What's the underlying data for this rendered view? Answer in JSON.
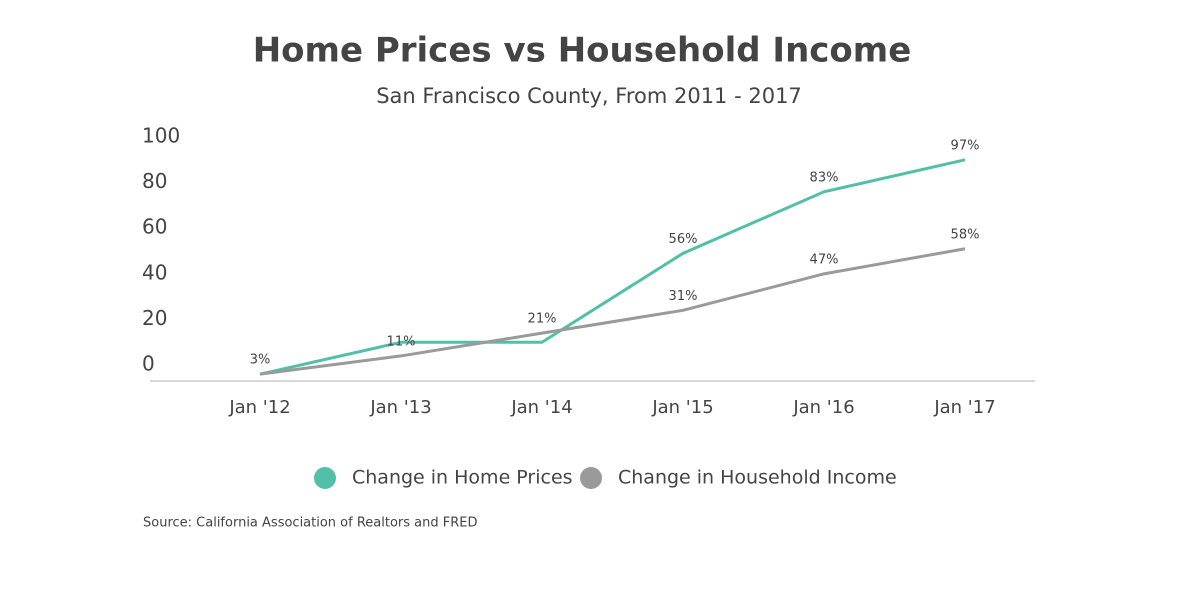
{
  "chart_data": {
    "type": "line",
    "title": "Home Prices vs Household Income",
    "subtitle": "San Francisco County, From 2011 - 2017",
    "source": "Source:  California Association of Realtors and FRED",
    "categories": [
      "Jan '12",
      "Jan '13",
      "Jan '14",
      "Jan '15",
      "Jan '16",
      "Jan '17"
    ],
    "series": [
      {
        "name": "Change in Home Prices",
        "color": "#52bfa9",
        "values": [
          3,
          17,
          17,
          56,
          83,
          97
        ],
        "value_labels": [
          "3%",
          null,
          null,
          "56%",
          "83%",
          "97%"
        ]
      },
      {
        "name": "Change in Household Income",
        "color": "#9a9a9a",
        "values": [
          3,
          11,
          21,
          31,
          47,
          58
        ],
        "value_labels": [
          null,
          "11%",
          "21%",
          "31%",
          "47%",
          "58%"
        ]
      }
    ],
    "ylim": [
      0,
      100
    ],
    "yticks": [
      0,
      20,
      40,
      60,
      80,
      100
    ],
    "grid": false,
    "legend": "bottom"
  }
}
